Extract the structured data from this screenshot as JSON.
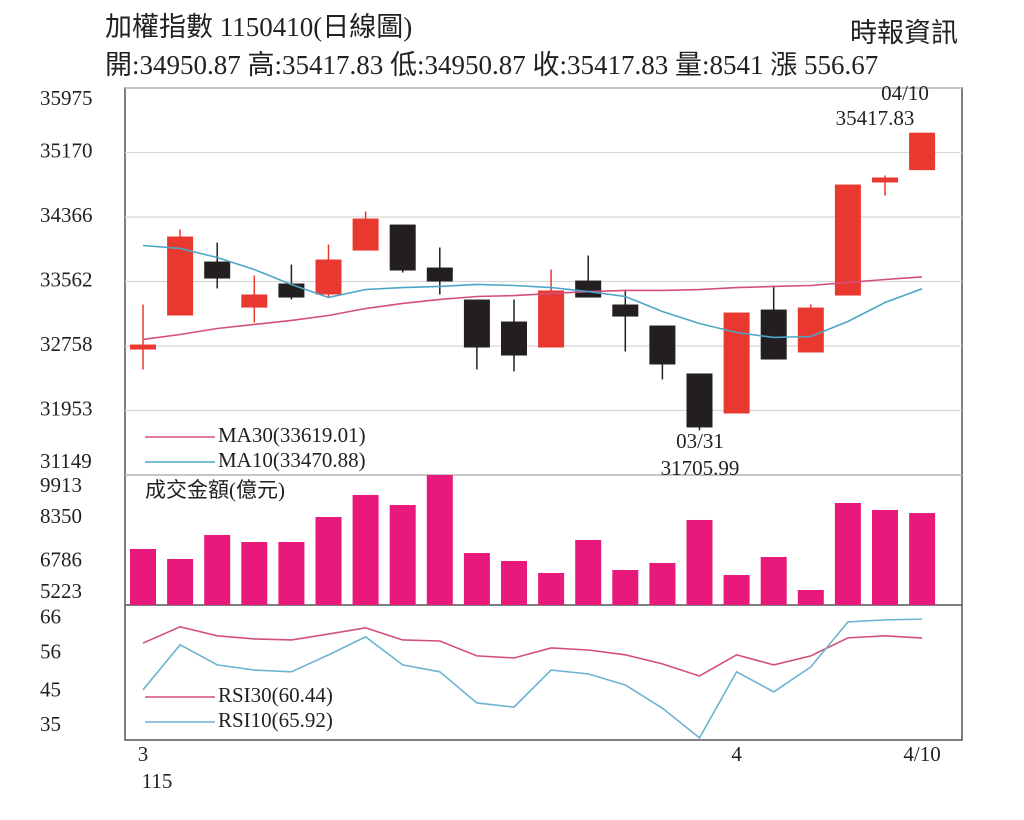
{
  "chart_data": [
    {
      "type": "candlestick",
      "title": "加權指數 1150410(日線圖)",
      "subtitle": "開:34950.87 高:35417.83 低:34950.87 收:35417.83 量:8541 漲 556.67",
      "source": "時報資訊",
      "open": [
        32714,
        33138,
        33811,
        33237,
        33537,
        33400,
        33948,
        34272,
        33736,
        33337,
        33063,
        32739,
        33574,
        33275,
        33013,
        32415,
        31916,
        33212,
        32677,
        33387,
        34797,
        34950.87
      ],
      "high": [
        33275,
        34210,
        34048,
        33637,
        33774,
        34023,
        34435,
        34272,
        33986,
        33337,
        33337,
        33711,
        33886,
        33462,
        33013,
        32415,
        33175,
        33512,
        33275,
        34771,
        34884,
        35417.83
      ],
      "low": [
        32465,
        33138,
        33475,
        33050,
        33337,
        33362,
        33948,
        33674,
        33400,
        32465,
        32440,
        32739,
        33362,
        32689,
        32340,
        31705.99,
        31916,
        32589,
        32677,
        33387,
        34634,
        34950.87
      ],
      "close": [
        32776,
        34123,
        33599,
        33400,
        33362,
        33836,
        34347,
        33699,
        33562,
        32739,
        32639,
        33450,
        33362,
        33125,
        32527,
        31742,
        33175,
        32589,
        33237,
        34771,
        34859,
        35417.83
      ],
      "up_color": "#e8382f",
      "down_color": "#231f20",
      "series": [
        {
          "name": "MA30(33619.01)",
          "color": "#d4507c",
          "values": [
            32839,
            32901,
            32976,
            33026,
            33076,
            33138,
            33225,
            33288,
            33338,
            33375,
            33387,
            33412,
            33437,
            33450,
            33450,
            33462,
            33487,
            33500,
            33512,
            33550,
            33587,
            33619.01
          ]
        },
        {
          "name": "MA10(33470.88)",
          "color": "#4da6c8",
          "values": [
            34011,
            33974,
            33861,
            33712,
            33525,
            33363,
            33462,
            33487,
            33500,
            33525,
            33512,
            33487,
            33437,
            33375,
            33188,
            33038,
            32926,
            32864,
            32876,
            33063,
            33300,
            33470.88
          ]
        }
      ],
      "annotations": [
        "04/10",
        "35417.83",
        "03/31",
        "31705.99"
      ],
      "ylim": [
        31149,
        35975
      ],
      "yticks": [
        31149,
        31953,
        32758,
        33562,
        34366,
        35170,
        35975
      ],
      "grid": true
    },
    {
      "type": "bar",
      "series": [
        {
          "name": "成交金額(億元)",
          "color": "#e8197a",
          "values": [
            7243,
            6883,
            7749,
            7496,
            7496,
            8398,
            9192,
            8831,
            9913,
            7099,
            6811,
            6378,
            7568,
            6486,
            6738,
            8290,
            6305,
            6955,
            5764,
            8903,
            8651,
            8541
          ]
        }
      ],
      "ylim": [
        5223,
        9913
      ],
      "yticks": [
        5223,
        6786,
        8350,
        9913
      ],
      "grid": false
    },
    {
      "type": "line",
      "categories": [
        "3",
        null,
        null,
        null,
        null,
        null,
        null,
        null,
        null,
        null,
        null,
        null,
        null,
        null,
        null,
        null,
        "4",
        null,
        null,
        null,
        null,
        "4/10"
      ],
      "year_label": "115",
      "series": [
        {
          "name": "RSI30(60.44)",
          "color": "#d4507c",
          "values": [
            59.0,
            63.7,
            61.1,
            60.2,
            59.9,
            61.6,
            63.4,
            59.9,
            59.6,
            55.3,
            54.7,
            57.6,
            57.0,
            55.6,
            53.0,
            49.5,
            55.6,
            52.7,
            55.3,
            60.5,
            61.1,
            60.44
          ]
        },
        {
          "name": "RSI10(65.92)",
          "color": "#6db4d2",
          "values": [
            45.5,
            58.5,
            52.7,
            51.2,
            50.7,
            55.6,
            60.8,
            52.7,
            50.7,
            41.7,
            40.5,
            51.2,
            50.1,
            46.9,
            40.2,
            31.6,
            50.7,
            44.9,
            52.1,
            65.1,
            65.7,
            65.92
          ]
        }
      ],
      "ylim": [
        31,
        70
      ],
      "yticks": [
        35,
        45,
        56,
        66
      ],
      "grid": false
    }
  ]
}
